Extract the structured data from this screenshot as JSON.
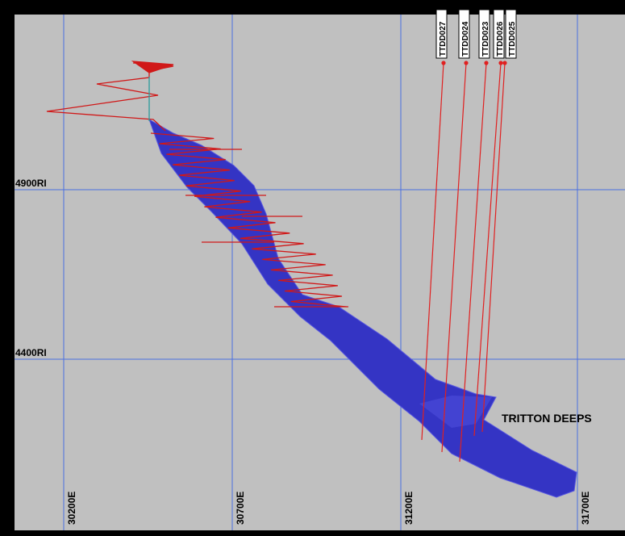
{
  "section": {
    "elevation_labels": [
      "4900RI",
      "4400RI"
    ],
    "easting_labels": [
      "30200E",
      "30700E",
      "31200E",
      "31700E"
    ],
    "drillholes": [
      "TTDD027",
      "TTDD024",
      "TTDD023",
      "TTDD026",
      "TTDD025"
    ],
    "orebody_label": "TRITTON DEEPS"
  }
}
